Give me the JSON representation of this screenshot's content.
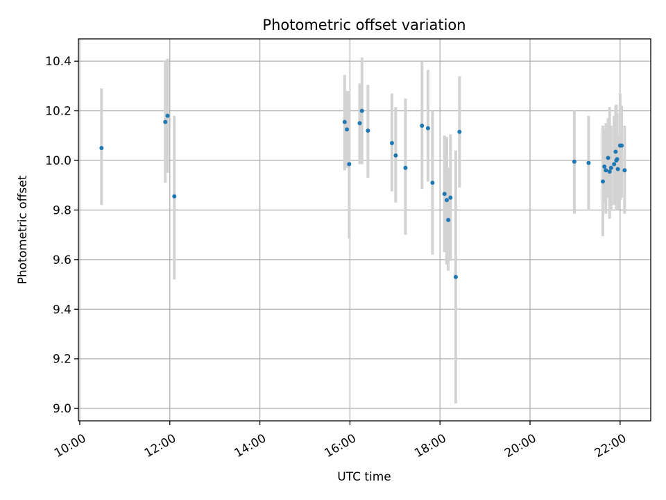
{
  "chart_data": {
    "type": "scatter",
    "title": "Photometric offset variation",
    "xlabel": "UTC time",
    "ylabel": "Photometric offset",
    "x_ticks": [
      "10:00",
      "12:00",
      "14:00",
      "16:00",
      "18:00",
      "20:00",
      "22:00"
    ],
    "y_ticks": [
      "9.0",
      "9.2",
      "9.4",
      "9.6",
      "9.8",
      "10.0",
      "10.2",
      "10.4"
    ],
    "xlim_hours": [
      9.97,
      22.68
    ],
    "ylim": [
      8.95,
      10.49
    ],
    "grid": true,
    "points": [
      {
        "x": "10:29",
        "y": 10.05,
        "yerr_low": 9.82,
        "yerr_high": 10.29
      },
      {
        "x": "11:54",
        "y": 10.155,
        "yerr_low": 9.91,
        "yerr_high": 10.4
      },
      {
        "x": "11:57",
        "y": 10.18,
        "yerr_low": 9.95,
        "yerr_high": 10.41
      },
      {
        "x": "12:06",
        "y": 9.855,
        "yerr_low": 9.52,
        "yerr_high": 10.18
      },
      {
        "x": "15:53",
        "y": 10.155,
        "yerr_low": 9.96,
        "yerr_high": 10.345
      },
      {
        "x": "15:56",
        "y": 10.125,
        "yerr_low": 9.97,
        "yerr_high": 10.28
      },
      {
        "x": "15:59",
        "y": 9.985,
        "yerr_low": 9.685,
        "yerr_high": 10.28
      },
      {
        "x": "16:13",
        "y": 10.15,
        "yerr_low": 9.985,
        "yerr_high": 10.31
      },
      {
        "x": "16:16",
        "y": 10.2,
        "yerr_low": 9.985,
        "yerr_high": 10.415
      },
      {
        "x": "16:24",
        "y": 10.12,
        "yerr_low": 9.93,
        "yerr_high": 10.305
      },
      {
        "x": "16:56",
        "y": 10.07,
        "yerr_low": 9.875,
        "yerr_high": 10.27
      },
      {
        "x": "17:01",
        "y": 10.02,
        "yerr_low": 9.83,
        "yerr_high": 10.215
      },
      {
        "x": "17:14",
        "y": 9.97,
        "yerr_low": 9.7,
        "yerr_high": 10.25
      },
      {
        "x": "17:36",
        "y": 10.14,
        "yerr_low": 9.885,
        "yerr_high": 10.4
      },
      {
        "x": "17:44",
        "y": 10.13,
        "yerr_low": 9.915,
        "yerr_high": 10.365
      },
      {
        "x": "17:50",
        "y": 9.91,
        "yerr_low": 9.62,
        "yerr_high": 10.2
      },
      {
        "x": "18:06",
        "y": 9.865,
        "yerr_low": 9.63,
        "yerr_high": 10.1
      },
      {
        "x": "18:09",
        "y": 9.84,
        "yerr_low": 9.58,
        "yerr_high": 10.095
      },
      {
        "x": "18:11",
        "y": 9.76,
        "yerr_low": 9.555,
        "yerr_high": 9.97
      },
      {
        "x": "18:14",
        "y": 9.85,
        "yerr_low": 9.595,
        "yerr_high": 10.105
      },
      {
        "x": "18:21",
        "y": 9.53,
        "yerr_low": 9.02,
        "yerr_high": 10.04
      },
      {
        "x": "18:26",
        "y": 10.115,
        "yerr_low": 9.89,
        "yerr_high": 10.34
      },
      {
        "x": "20:59",
        "y": 9.995,
        "yerr_low": 9.785,
        "yerr_high": 10.2
      },
      {
        "x": "21:18",
        "y": 9.99,
        "yerr_low": 9.8,
        "yerr_high": 10.18
      },
      {
        "x": "21:37",
        "y": 9.915,
        "yerr_low": 9.695,
        "yerr_high": 10.14
      },
      {
        "x": "21:39",
        "y": 9.975,
        "yerr_low": 9.83,
        "yerr_high": 10.125
      },
      {
        "x": "21:41",
        "y": 9.96,
        "yerr_low": 9.785,
        "yerr_high": 10.15
      },
      {
        "x": "21:44",
        "y": 10.01,
        "yerr_low": 9.85,
        "yerr_high": 10.17
      },
      {
        "x": "21:46",
        "y": 9.955,
        "yerr_low": 9.765,
        "yerr_high": 10.215
      },
      {
        "x": "21:48",
        "y": 9.97,
        "yerr_low": 9.8,
        "yerr_high": 10.14
      },
      {
        "x": "21:52",
        "y": 9.985,
        "yerr_low": 9.82,
        "yerr_high": 10.18
      },
      {
        "x": "21:54",
        "y": 10.035,
        "yerr_low": 9.85,
        "yerr_high": 10.22
      },
      {
        "x": "21:55",
        "y": 10.0,
        "yerr_low": 9.8,
        "yerr_high": 10.225
      },
      {
        "x": "21:56",
        "y": 10.005,
        "yerr_low": 9.81,
        "yerr_high": 10.19
      },
      {
        "x": "21:57",
        "y": 9.965,
        "yerr_low": 9.8,
        "yerr_high": 10.1
      },
      {
        "x": "22:00",
        "y": 10.06,
        "yerr_low": 9.84,
        "yerr_high": 10.27
      },
      {
        "x": "22:02",
        "y": 10.06,
        "yerr_low": 9.85,
        "yerr_high": 10.22
      },
      {
        "x": "22:06",
        "y": 9.96,
        "yerr_low": 9.785,
        "yerr_high": 10.14
      }
    ]
  },
  "colors": {
    "point": "#1f77b4",
    "errorbar": "#d3d3d3",
    "grid": "#b0b0b0"
  }
}
